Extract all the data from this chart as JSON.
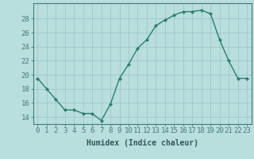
{
  "x": [
    0,
    1,
    2,
    3,
    4,
    5,
    6,
    7,
    8,
    9,
    10,
    11,
    12,
    13,
    14,
    15,
    16,
    17,
    18,
    19,
    20,
    21,
    22,
    23
  ],
  "y": [
    19.5,
    18.0,
    16.5,
    15.0,
    15.0,
    14.5,
    14.5,
    13.5,
    15.8,
    19.5,
    21.5,
    23.8,
    25.0,
    27.0,
    27.8,
    28.5,
    29.0,
    29.0,
    29.2,
    28.7,
    25.0,
    22.0,
    19.5,
    19.5
  ],
  "xlabel": "Humidex (Indice chaleur)",
  "yticks": [
    14,
    16,
    18,
    20,
    22,
    24,
    26,
    28
  ],
  "ylim": [
    13.0,
    30.2
  ],
  "xlim": [
    -0.5,
    23.5
  ],
  "line_color": "#2e7d6e",
  "marker_color": "#2e7d6e",
  "bg_color": "#b8dede",
  "grid_color": "#a0c8c8",
  "axis_color": "#4a7a7a",
  "tick_label_color": "#2e5a5a",
  "xlabel_color": "#2e5a5a",
  "xlabel_fontsize": 7.0,
  "tick_fontsize": 6.5
}
